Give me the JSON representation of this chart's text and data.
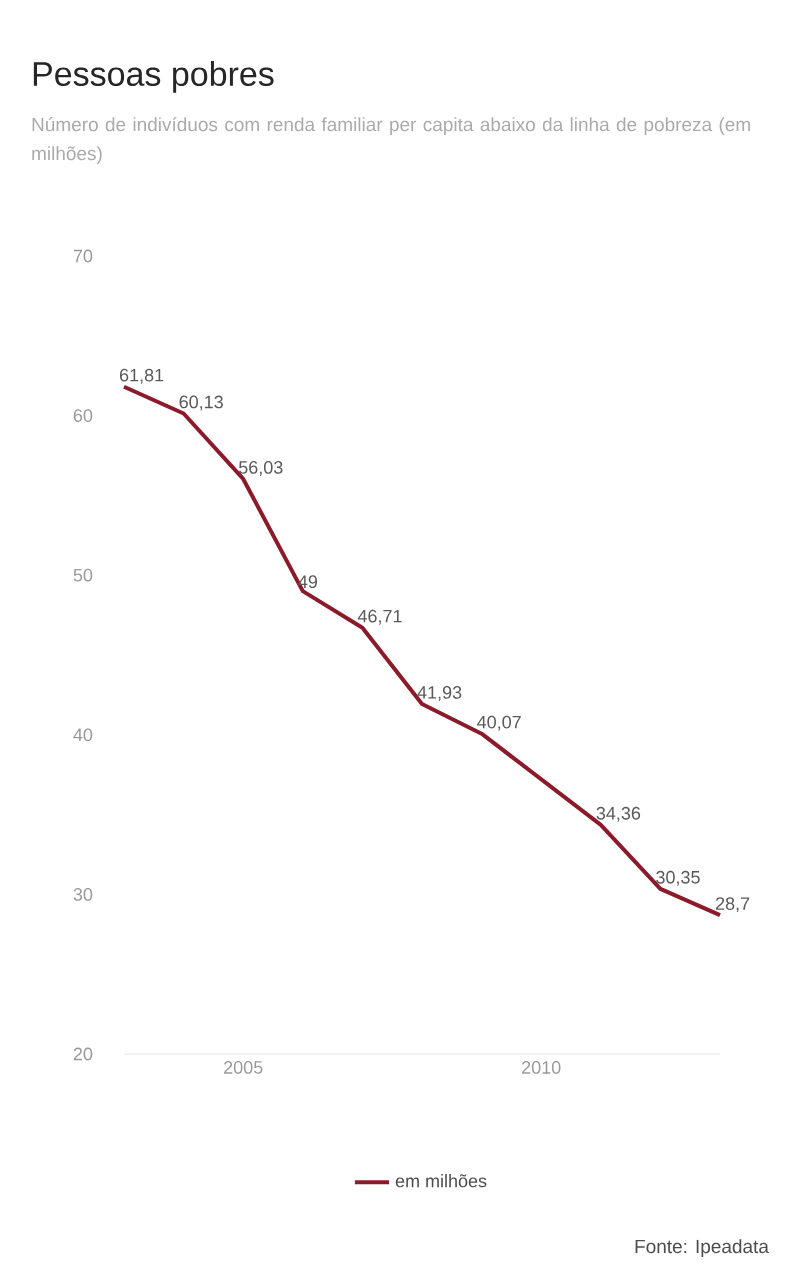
{
  "chart_data": {
    "type": "line",
    "title": "Pessoas pobres",
    "subtitle": "Número de indivíduos com renda familiar per capita abaixo da linha de pobreza (em milhões)",
    "x": [
      2003,
      2004,
      2005,
      2006,
      2007,
      2008,
      2009,
      2011,
      2012,
      2013
    ],
    "series": [
      {
        "name": "em milhões",
        "color": "#8b1a2b",
        "values": [
          61.81,
          60.13,
          56.03,
          49,
          46.71,
          41.93,
          40.07,
          34.36,
          30.35,
          28.7
        ],
        "value_labels": [
          "61,81",
          "60,13",
          "56,03",
          "49",
          "46,71",
          "41,93",
          "40,07",
          "34,36",
          "30,35",
          "28,7"
        ]
      }
    ],
    "xlim": [
      2003,
      2013
    ],
    "xticks": [
      2005,
      2010
    ],
    "ylim": [
      20,
      70
    ],
    "yticks": [
      20,
      30,
      40,
      50,
      60,
      70
    ],
    "grid": false,
    "legend": "bottom",
    "marker": "none",
    "line_style": "solid",
    "annotations": [
      "Fonte: Ipeadata"
    ]
  }
}
